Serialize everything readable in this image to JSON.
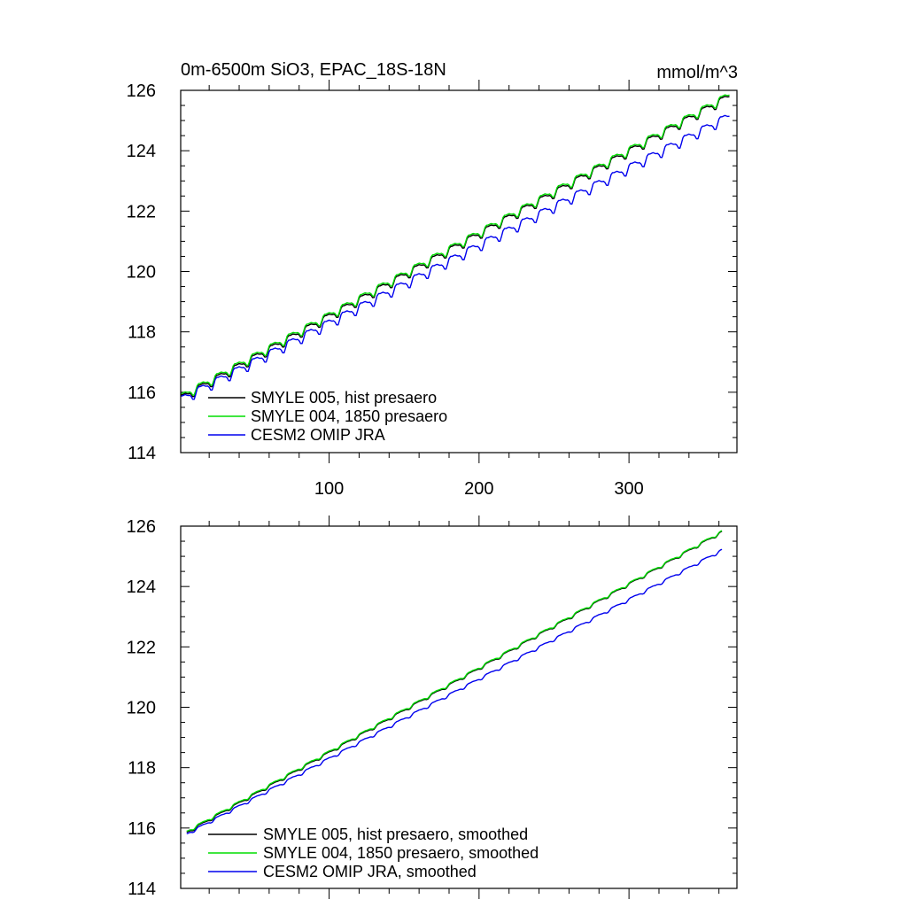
{
  "chart_data": [
    {
      "type": "line",
      "title": "0m-6500m SiO3, EPAC_18S-18N",
      "units": "mmol/m^3",
      "xlim": [
        1,
        372
      ],
      "ylim": [
        114,
        126
      ],
      "xticks": [
        100,
        200,
        300
      ],
      "xtick_labels": [
        "100",
        "200",
        "300"
      ],
      "yticks": [
        114,
        116,
        118,
        120,
        122,
        124,
        126
      ],
      "ytick_labels": [
        "114",
        "116",
        "118",
        "120",
        "122",
        "124",
        "126"
      ],
      "series": [
        {
          "name": "SMYLE 005, hist presaero",
          "color": "#000000",
          "x_start": 1,
          "x_end": 367,
          "y_start": 115.8,
          "y_end": 125.8,
          "seasonal_amp": 0.12
        },
        {
          "name": "SMYLE 004, 1850 presaero",
          "color": "#00dd00",
          "x_start": 1,
          "x_end": 367,
          "y_start": 115.85,
          "y_end": 125.85,
          "seasonal_amp": 0.12
        },
        {
          "name": "CESM2 OMIP JRA",
          "color": "#0000ee",
          "x_start": 1,
          "x_end": 367,
          "y_start": 115.75,
          "y_end": 125.15,
          "seasonal_amp": 0.14
        }
      ]
    },
    {
      "type": "line",
      "title": "",
      "units": "",
      "xlim": [
        1,
        372
      ],
      "ylim": [
        114,
        126
      ],
      "xticks": [
        100,
        200,
        300
      ],
      "xtick_labels": [],
      "yticks": [
        114,
        116,
        118,
        120,
        122,
        124,
        126
      ],
      "ytick_labels": [
        "114",
        "116",
        "118",
        "120",
        "122",
        "124",
        "126"
      ],
      "series": [
        {
          "name": "SMYLE 005, hist presaero, smoothed",
          "color": "#000000",
          "x_start": 5,
          "x_end": 362,
          "y_start": 115.85,
          "y_end": 125.8,
          "seasonal_amp": 0.04
        },
        {
          "name": "SMYLE 004, 1850 presaero, smoothed",
          "color": "#00dd00",
          "x_start": 5,
          "x_end": 362,
          "y_start": 115.88,
          "y_end": 125.82,
          "seasonal_amp": 0.04
        },
        {
          "name": "CESM2 OMIP JRA, smoothed",
          "color": "#0000ee",
          "x_start": 5,
          "x_end": 362,
          "y_start": 115.8,
          "y_end": 125.2,
          "seasonal_amp": 0.04
        }
      ]
    }
  ]
}
